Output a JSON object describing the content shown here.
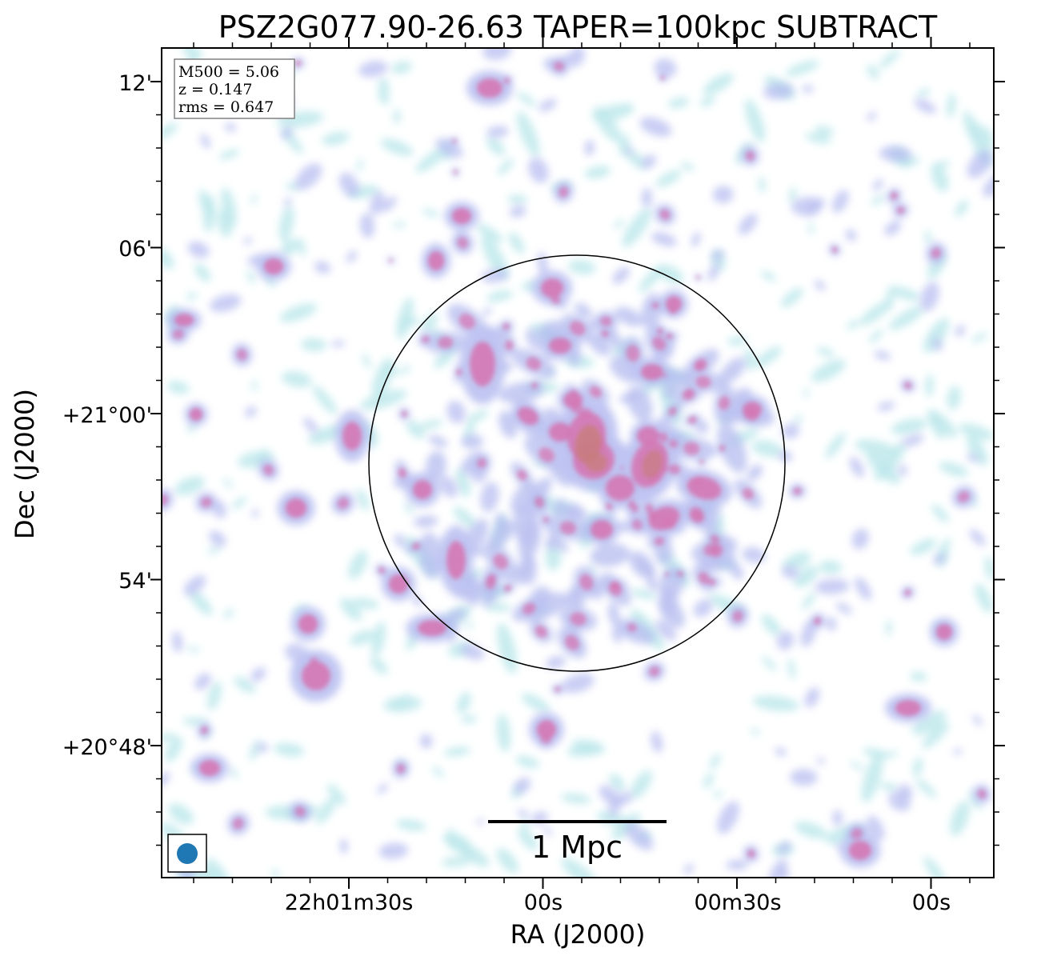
{
  "figure": {
    "title": "PSZ2G077.90-26.63 TAPER=100kpc SUBTRACT",
    "xlabel": "RA (J2000)",
    "ylabel": "Dec (J2000)",
    "x_ticks": [
      "22h01m30s",
      "00s",
      "00m30s",
      "00s"
    ],
    "y_ticks": [
      "12'",
      "06'",
      "+21°00'",
      "54'",
      "+20°48'"
    ],
    "info_box": {
      "m500": "M500 = 5.06",
      "z": "z = 0.147",
      "rms": "rms = 0.647"
    },
    "scale_bar_label": "1 Mpc",
    "colors": {
      "low": "#b9e6ea",
      "mid": "#b2b8ef",
      "high": "#d86aa8",
      "peak": "#c47e6e",
      "beam": "#1f77b4"
    }
  }
}
